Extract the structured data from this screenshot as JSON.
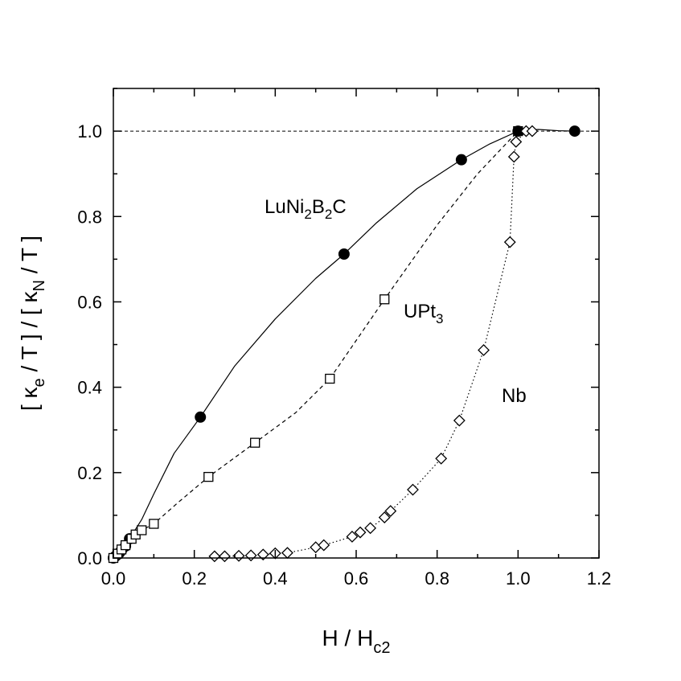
{
  "chart_data": {
    "type": "scatter",
    "title": "",
    "xlabel": {
      "main": "H / H",
      "sub": "c2"
    },
    "ylabel": {
      "p1": "[ κ",
      "s1": "e",
      "p2": " / T ] / [ κ",
      "s2": "N",
      "p3": " / T ]"
    },
    "xlim": [
      0,
      1.2
    ],
    "ylim": [
      0,
      1.1
    ],
    "x_ticks": [
      0.0,
      0.2,
      0.4,
      0.6,
      0.8,
      1.0,
      1.2
    ],
    "x_tick_labels": [
      "0.0",
      "0.2",
      "0.4",
      "0.6",
      "0.8",
      "1.0",
      "1.2"
    ],
    "y_ticks": [
      0.0,
      0.2,
      0.4,
      0.6,
      0.8,
      1.0
    ],
    "y_tick_labels": [
      "0.0",
      "0.2",
      "0.4",
      "0.6",
      "0.8",
      "1.0"
    ],
    "reference_line": {
      "y": 1.0,
      "style": "dashed"
    },
    "series": [
      {
        "label": {
          "p1": "LuNi",
          "s1": "2",
          "p2": "B",
          "s2": "2",
          "p3": "C"
        },
        "marker": "filled-circle",
        "line": "solid",
        "x": [
          0.0,
          0.005,
          0.01,
          0.015,
          0.02,
          0.03,
          0.04,
          0.215,
          0.57,
          0.86,
          1.0,
          1.14
        ],
        "y": [
          0.0,
          0.004,
          0.008,
          0.012,
          0.018,
          0.028,
          0.045,
          0.33,
          0.712,
          0.933,
          1.0,
          1.0
        ],
        "curve_x": [
          0.0,
          0.02,
          0.04,
          0.07,
          0.1,
          0.15,
          0.215,
          0.3,
          0.4,
          0.5,
          0.57,
          0.65,
          0.75,
          0.86,
          0.93,
          1.0,
          1.05,
          1.1,
          1.14
        ],
        "curve_y": [
          0.0,
          0.018,
          0.045,
          0.09,
          0.15,
          0.245,
          0.33,
          0.45,
          0.56,
          0.655,
          0.712,
          0.785,
          0.865,
          0.933,
          0.97,
          1.0,
          1.004,
          1.001,
          1.0
        ]
      },
      {
        "label": {
          "p1": "UPt",
          "s1": "3"
        },
        "marker": "open-square",
        "line": "dashed",
        "x": [
          0.0,
          0.01,
          0.02,
          0.03,
          0.045,
          0.055,
          0.07,
          0.1,
          0.235,
          0.35,
          0.535,
          0.67,
          1.0
        ],
        "y": [
          0.0,
          0.01,
          0.02,
          0.03,
          0.045,
          0.055,
          0.065,
          0.08,
          0.19,
          0.27,
          0.42,
          0.606,
          1.0
        ],
        "curve_x": [
          0.0,
          0.03,
          0.07,
          0.1,
          0.16,
          0.235,
          0.35,
          0.45,
          0.535,
          0.67,
          0.8,
          0.9,
          1.0
        ],
        "curve_y": [
          0.0,
          0.03,
          0.065,
          0.08,
          0.13,
          0.19,
          0.27,
          0.34,
          0.42,
          0.606,
          0.78,
          0.9,
          1.0
        ]
      },
      {
        "label": {
          "p1": "Nb"
        },
        "marker": "open-diamond",
        "line": "dotted",
        "x": [
          0.25,
          0.275,
          0.31,
          0.34,
          0.37,
          0.4,
          0.43,
          0.5,
          0.52,
          0.59,
          0.61,
          0.635,
          0.67,
          0.685,
          0.74,
          0.81,
          0.855,
          0.915,
          0.98,
          0.99,
          0.995,
          1.02,
          1.035
        ],
        "y": [
          0.004,
          0.004,
          0.005,
          0.006,
          0.008,
          0.011,
          0.012,
          0.025,
          0.03,
          0.05,
          0.06,
          0.07,
          0.095,
          0.11,
          0.16,
          0.233,
          0.322,
          0.487,
          0.74,
          0.94,
          0.975,
          1.0,
          1.0
        ]
      }
    ]
  }
}
